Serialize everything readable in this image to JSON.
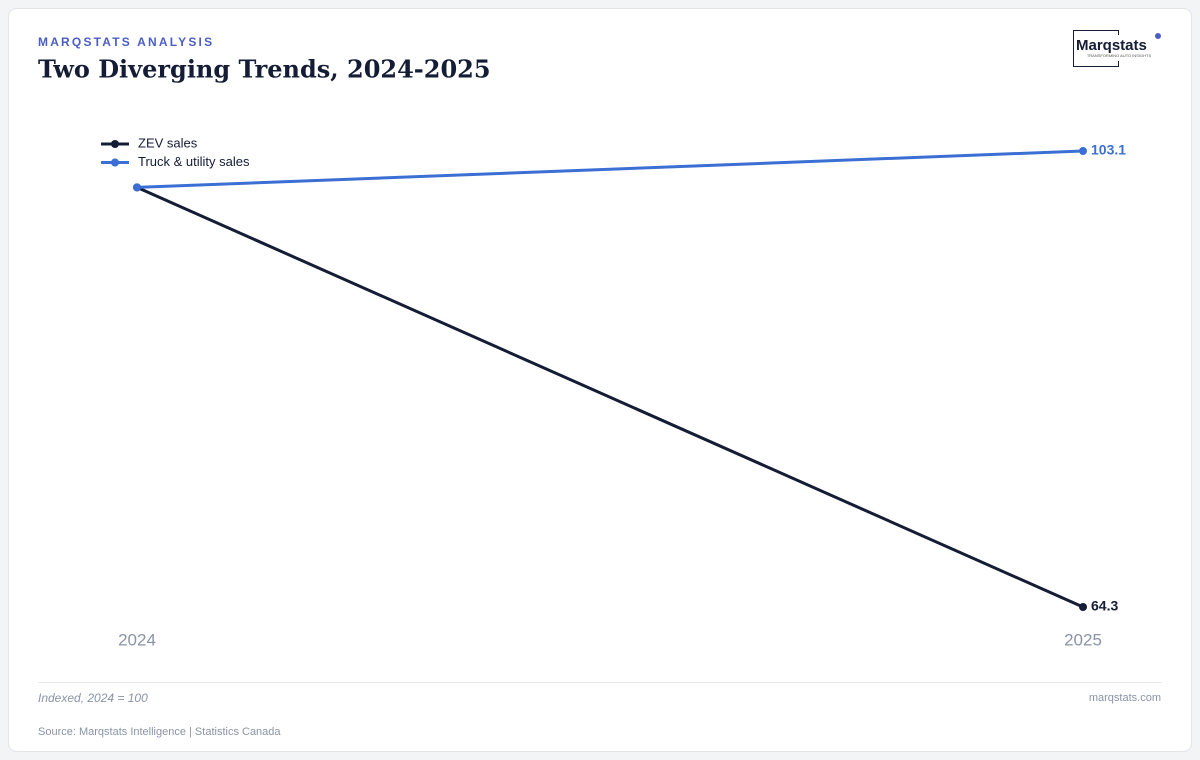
{
  "chart_data": {
    "type": "line",
    "kicker": "MARQSTATS ANALYSIS",
    "title": "Two Diverging Trends, 2024-2025",
    "categories": [
      "2024",
      "2025"
    ],
    "series": [
      {
        "name": "ZEV sales",
        "color": "#141c36",
        "values": [
          100,
          64.3
        ]
      },
      {
        "name": "Truck & utility sales",
        "color": "#3b6fd4",
        "values": [
          100,
          103.1
        ]
      }
    ],
    "legend": "upper left",
    "note": "Indexed, 2024 = 100",
    "site": "marqstats.com",
    "source": "Source: Marqstats Intelligence | Statistics Canada",
    "logo": {
      "name": "Marqstats",
      "tagline": "TRANSFORMING AUTO INSIGHTS"
    }
  }
}
